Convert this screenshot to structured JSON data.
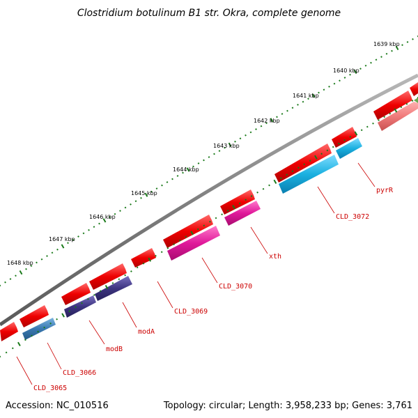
{
  "title": "Clostridium botulinum B1 str. Okra, complete genome",
  "accession": "Accession: NC_010516",
  "summary": "Topology: circular; Length: 3,958,233 bp; Genes: 3,761",
  "colors": {
    "backbone": "#808080",
    "tick": "#1a7a1a",
    "label": "#cc0000",
    "gene_forward": "#ee0000",
    "cds_cyan": "#1ab0e0",
    "cds_magenta": "#e0189a",
    "cds_indigo": "#3d3480",
    "cds_steel": "#3a78b0",
    "cds_pink": "#f07a7a"
  },
  "kbp_ticks": [
    {
      "kbp": 1639,
      "label": "1639 kbp"
    },
    {
      "kbp": 1640,
      "label": "1640 kbp"
    },
    {
      "kbp": 1641,
      "label": "1641 kbp"
    },
    {
      "kbp": 1642,
      "label": "1642 kbp"
    },
    {
      "kbp": 1643,
      "label": "1643 kbp"
    },
    {
      "kbp": 1644,
      "label": "1644 kbp"
    },
    {
      "kbp": 1645,
      "label": "1645 kbp"
    },
    {
      "kbp": 1646,
      "label": "1646 kbp"
    },
    {
      "kbp": 1647,
      "label": "1647 kbp"
    },
    {
      "kbp": 1648,
      "label": "1648 kbp"
    }
  ],
  "gene_labels": [
    {
      "name": "CLD_3065"
    },
    {
      "name": "CLD_3066"
    },
    {
      "name": "modB"
    },
    {
      "name": "modA"
    },
    {
      "name": "CLD_3069"
    },
    {
      "name": "CLD_3070"
    },
    {
      "name": "xth"
    },
    {
      "name": "CLD_3072"
    },
    {
      "name": "pyrR"
    }
  ]
}
